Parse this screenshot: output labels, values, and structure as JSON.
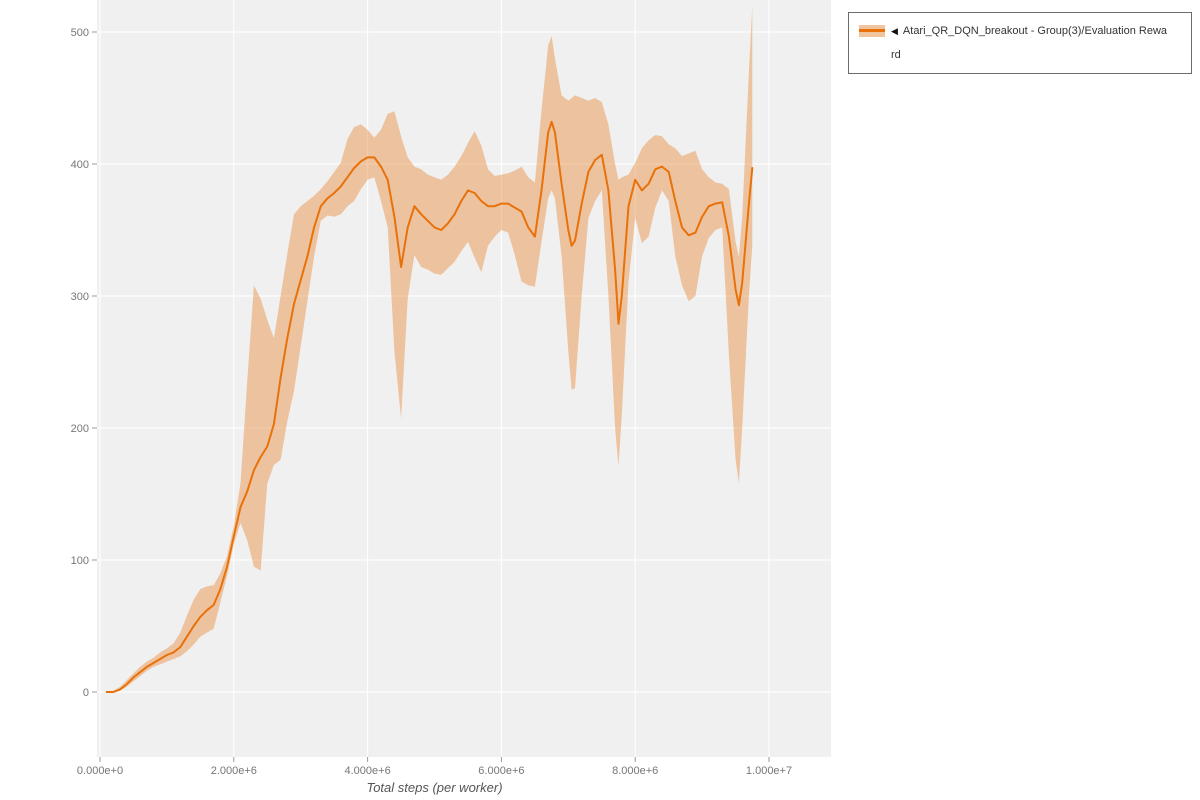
{
  "page": {
    "background": "#ffffff"
  },
  "chart_data": {
    "type": "line",
    "title": "",
    "xlabel": "Total steps (per worker)",
    "ylabel": "",
    "grid": true,
    "plot_background": "#f0f0f0",
    "grid_color": "#ffffff",
    "tick_color": "#767676",
    "axis_label_color": "#555555",
    "xlim": [
      -45000,
      10930000
    ],
    "ylim": [
      -49,
      524
    ],
    "legend_position": "top-right-outside",
    "x_ticks": [
      {
        "value": 0,
        "label": "0.000e+0"
      },
      {
        "value": 2000000,
        "label": "2.000e+6"
      },
      {
        "value": 4000000,
        "label": "4.000e+6"
      },
      {
        "value": 6000000,
        "label": "6.000e+6"
      },
      {
        "value": 8000000,
        "label": "8.000e+6"
      },
      {
        "value": 10000000,
        "label": "1.000e+7"
      }
    ],
    "y_ticks": [
      {
        "value": 0,
        "label": "0"
      },
      {
        "value": 100,
        "label": "100"
      },
      {
        "value": 200,
        "label": "200"
      },
      {
        "value": 300,
        "label": "300"
      },
      {
        "value": 400,
        "label": "400"
      },
      {
        "value": 500,
        "label": "500"
      }
    ],
    "series": [
      {
        "name": "Atari_QR_DQN_breakout - Group(3)/Evaluation Reward",
        "line_color": "#e8710a",
        "band_fill": "#e8710a",
        "band_opacity": 0.35,
        "columns": [
          "step",
          "mean",
          "lower",
          "upper"
        ],
        "points": [
          [
            100000,
            0,
            0,
            0
          ],
          [
            200000,
            0,
            0,
            1
          ],
          [
            300000,
            2,
            1,
            4
          ],
          [
            400000,
            6,
            4,
            9
          ],
          [
            500000,
            11,
            8,
            14
          ],
          [
            600000,
            15,
            12,
            19
          ],
          [
            700000,
            19,
            16,
            23
          ],
          [
            800000,
            22,
            19,
            26
          ],
          [
            900000,
            25,
            21,
            30
          ],
          [
            1000000,
            28,
            23,
            33
          ],
          [
            1100000,
            30,
            25,
            37
          ],
          [
            1200000,
            34,
            27,
            45
          ],
          [
            1300000,
            42,
            31,
            58
          ],
          [
            1400000,
            50,
            36,
            70
          ],
          [
            1500000,
            57,
            42,
            78
          ],
          [
            1600000,
            62,
            45,
            80
          ],
          [
            1700000,
            66,
            48,
            81
          ],
          [
            1800000,
            78,
            68,
            90
          ],
          [
            1900000,
            95,
            88,
            103
          ],
          [
            2000000,
            118,
            112,
            126
          ],
          [
            2100000,
            140,
            128,
            158
          ],
          [
            2200000,
            152,
            115,
            235
          ],
          [
            2300000,
            168,
            95,
            308
          ],
          [
            2400000,
            178,
            92,
            298
          ],
          [
            2500000,
            186,
            158,
            282
          ],
          [
            2600000,
            203,
            172,
            268
          ],
          [
            2700000,
            238,
            176,
            300
          ],
          [
            2800000,
            268,
            205,
            332
          ],
          [
            2900000,
            294,
            228,
            362
          ],
          [
            3000000,
            312,
            262,
            368
          ],
          [
            3100000,
            330,
            296,
            372
          ],
          [
            3200000,
            352,
            330,
            376
          ],
          [
            3300000,
            368,
            357,
            381
          ],
          [
            3400000,
            374,
            361,
            387
          ],
          [
            3500000,
            378,
            360,
            394
          ],
          [
            3600000,
            383,
            362,
            401
          ],
          [
            3700000,
            390,
            368,
            419
          ],
          [
            3800000,
            397,
            372,
            428
          ],
          [
            3900000,
            402,
            381,
            430
          ],
          [
            4000000,
            405,
            388,
            426
          ],
          [
            4100000,
            405,
            390,
            420
          ],
          [
            4200000,
            398,
            372,
            426
          ],
          [
            4300000,
            388,
            352,
            438
          ],
          [
            4400000,
            360,
            258,
            440
          ],
          [
            4500000,
            322,
            207,
            421
          ],
          [
            4600000,
            352,
            298,
            405
          ],
          [
            4700000,
            368,
            331,
            398
          ],
          [
            4800000,
            362,
            322,
            396
          ],
          [
            4900000,
            357,
            320,
            392
          ],
          [
            5000000,
            352,
            317,
            390
          ],
          [
            5100000,
            350,
            316,
            388
          ],
          [
            5200000,
            355,
            321,
            392
          ],
          [
            5300000,
            362,
            326,
            398
          ],
          [
            5400000,
            372,
            334,
            406
          ],
          [
            5500000,
            380,
            341,
            416
          ],
          [
            5600000,
            378,
            329,
            425
          ],
          [
            5700000,
            372,
            318,
            414
          ],
          [
            5800000,
            368,
            338,
            396
          ],
          [
            5900000,
            368,
            345,
            391
          ],
          [
            6000000,
            370,
            350,
            392
          ],
          [
            6100000,
            370,
            348,
            393
          ],
          [
            6200000,
            367,
            331,
            395
          ],
          [
            6300000,
            364,
            311,
            398
          ],
          [
            6400000,
            352,
            308,
            390
          ],
          [
            6500000,
            345,
            307,
            386
          ],
          [
            6600000,
            380,
            341,
            441
          ],
          [
            6700000,
            424,
            374,
            490
          ],
          [
            6750000,
            432,
            380,
            497
          ],
          [
            6800000,
            424,
            374,
            480
          ],
          [
            6900000,
            385,
            330,
            452
          ],
          [
            7000000,
            350,
            258,
            448
          ],
          [
            7050000,
            338,
            229,
            450
          ],
          [
            7100000,
            342,
            230,
            452
          ],
          [
            7200000,
            370,
            300,
            450
          ],
          [
            7300000,
            394,
            359,
            448
          ],
          [
            7400000,
            403,
            372,
            450
          ],
          [
            7500000,
            407,
            380,
            447
          ],
          [
            7600000,
            380,
            300,
            430
          ],
          [
            7700000,
            320,
            200,
            400
          ],
          [
            7750000,
            279,
            171,
            388
          ],
          [
            7800000,
            300,
            210,
            390
          ],
          [
            7900000,
            368,
            310,
            392
          ],
          [
            8000000,
            388,
            359,
            401
          ],
          [
            8100000,
            380,
            340,
            412
          ],
          [
            8200000,
            385,
            345,
            418
          ],
          [
            8300000,
            396,
            367,
            422
          ],
          [
            8400000,
            398,
            380,
            421
          ],
          [
            8500000,
            394,
            372,
            415
          ],
          [
            8600000,
            372,
            330,
            412
          ],
          [
            8700000,
            352,
            308,
            406
          ],
          [
            8800000,
            346,
            296,
            408
          ],
          [
            8900000,
            348,
            300,
            410
          ],
          [
            9000000,
            360,
            330,
            396
          ],
          [
            9100000,
            368,
            344,
            390
          ],
          [
            9200000,
            370,
            350,
            386
          ],
          [
            9300000,
            371,
            352,
            385
          ],
          [
            9400000,
            345,
            255,
            381
          ],
          [
            9500000,
            305,
            176,
            341
          ],
          [
            9550000,
            293,
            158,
            330
          ],
          [
            9600000,
            310,
            200,
            360
          ],
          [
            9700000,
            370,
            300,
            470
          ],
          [
            9750000,
            397,
            338,
            520
          ]
        ]
      }
    ]
  },
  "legend": {
    "collapse_icon": "◀",
    "series_label": "Atari_QR_DQN_breakout - Group(3)/Evaluation Reward",
    "series_label_line1": "Atari_QR_DQN_breakout - Group(3)/Evaluation Rewa",
    "series_label_line2": "rd"
  }
}
